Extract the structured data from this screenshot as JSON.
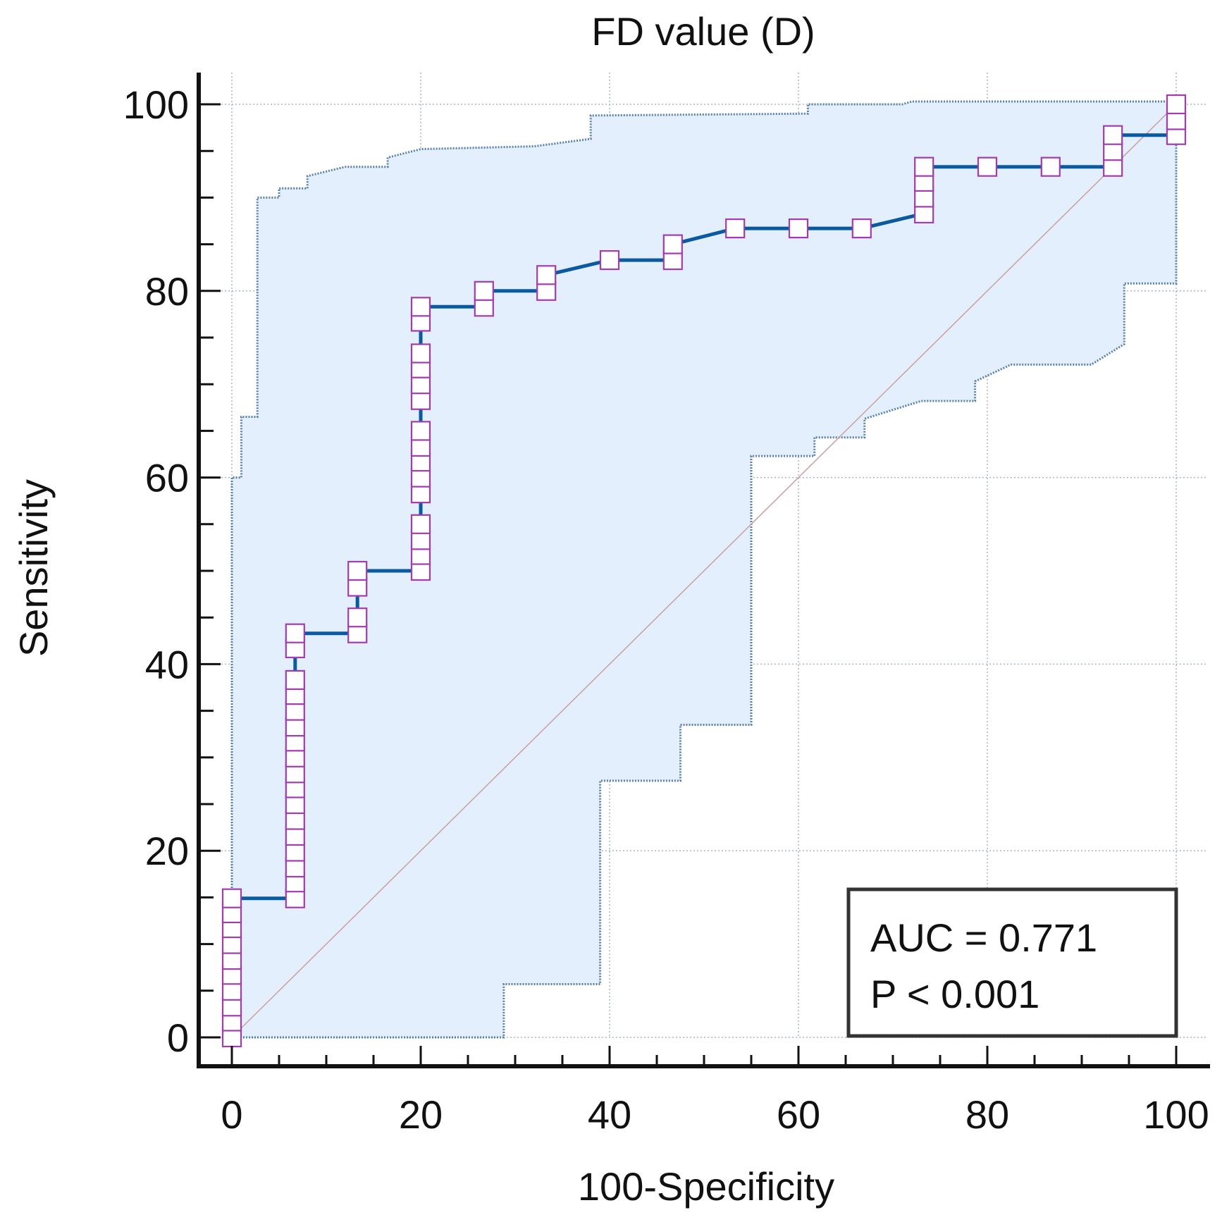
{
  "chart_data": {
    "type": "line",
    "title": "FD value (D)",
    "xlabel": "100-Specificity",
    "ylabel": "Sensitivity",
    "xlim": [
      0,
      100
    ],
    "ylim": [
      0,
      100
    ],
    "x_ticks": [
      "0",
      "20",
      "40",
      "60",
      "80",
      "100"
    ],
    "y_ticks": [
      "0",
      "20",
      "40",
      "60",
      "80",
      "100"
    ],
    "grid": true,
    "annotation": {
      "auc": "AUC = 0.771",
      "p": "P < 0.001"
    },
    "colors": {
      "roc_line": "#0b5aa0",
      "marker_edge": "#a33bb0",
      "ci_fill": "#e3effc",
      "ci_edge": "#5b80a8",
      "diagonal": "#c9a0a0",
      "grid": "#a9b6c4"
    },
    "roc_curve": {
      "name": "ROC curve",
      "points": [
        [
          0,
          0
        ],
        [
          0,
          14.9
        ],
        [
          6.7,
          14.9
        ],
        [
          6.7,
          43.3
        ],
        [
          13.3,
          43.3
        ],
        [
          13.3,
          50
        ],
        [
          20,
          50
        ],
        [
          20,
          78.3
        ],
        [
          26.7,
          78.3
        ],
        [
          26.7,
          80
        ],
        [
          33.3,
          80
        ],
        [
          33.3,
          81.7
        ],
        [
          40,
          83.3
        ],
        [
          46.7,
          83.3
        ],
        [
          46.7,
          85
        ],
        [
          53.3,
          86.7
        ],
        [
          60,
          86.7
        ],
        [
          66.7,
          86.7
        ],
        [
          73.3,
          88.3
        ],
        [
          73.3,
          93.3
        ],
        [
          80,
          93.3
        ],
        [
          86.7,
          93.3
        ],
        [
          93.3,
          93.3
        ],
        [
          93.3,
          96.7
        ],
        [
          100,
          96.7
        ],
        [
          100,
          100
        ]
      ]
    },
    "markers": [
      {
        "x": 0,
        "y": [
          0,
          1.7,
          3.3,
          5,
          6.7,
          8.3,
          10,
          11.7,
          13.3,
          14.9
        ]
      },
      {
        "x": 6.7,
        "y": [
          14.9,
          16.6,
          18.2,
          19.9,
          21.6,
          23.3,
          25,
          26.7,
          28.3,
          30,
          31.7,
          33.3,
          35,
          36.7,
          38.3,
          41.7,
          43.3
        ]
      },
      {
        "x": 13.3,
        "y": [
          43.3,
          45,
          48.3,
          50
        ]
      },
      {
        "x": 20,
        "y": [
          50,
          51.7,
          53.3,
          55,
          58.3,
          60,
          61.7,
          63.3,
          65,
          68.3,
          70,
          71.7,
          73.3,
          76.7,
          78.3
        ]
      },
      {
        "x": 26.7,
        "y": [
          78.3,
          80
        ]
      },
      {
        "x": 33.3,
        "y": [
          80,
          81.7
        ]
      },
      {
        "x": 40,
        "y": [
          83.3
        ]
      },
      {
        "x": 46.7,
        "y": [
          83.3,
          85
        ]
      },
      {
        "x": 53.3,
        "y": [
          86.7
        ]
      },
      {
        "x": 60,
        "y": [
          86.7
        ]
      },
      {
        "x": 66.7,
        "y": [
          86.7
        ]
      },
      {
        "x": 73.3,
        "y": [
          88.3,
          90,
          91.7,
          93.3
        ]
      },
      {
        "x": 80,
        "y": [
          93.3
        ]
      },
      {
        "x": 86.7,
        "y": [
          93.3
        ]
      },
      {
        "x": 93.3,
        "y": [
          93.3,
          95,
          96.7
        ]
      },
      {
        "x": 100,
        "y": [
          96.7,
          98.3,
          100
        ]
      }
    ],
    "ci_upper": [
      [
        0,
        0
      ],
      [
        0,
        60
      ],
      [
        1,
        60
      ],
      [
        1,
        66.5
      ],
      [
        2.7,
        66.5
      ],
      [
        2.7,
        90
      ],
      [
        5,
        90
      ],
      [
        5,
        91
      ],
      [
        8,
        91
      ],
      [
        8,
        92.3
      ],
      [
        12,
        93.3
      ],
      [
        16.5,
        93.3
      ],
      [
        16.5,
        94.3
      ],
      [
        20,
        95.2
      ],
      [
        32,
        95.5
      ],
      [
        38,
        96.3
      ],
      [
        38,
        98.8
      ],
      [
        61,
        99
      ],
      [
        61,
        100
      ],
      [
        71,
        100
      ],
      [
        72,
        100.3
      ],
      [
        100,
        100.3
      ]
    ],
    "ci_lower": [
      [
        0,
        0
      ],
      [
        28.8,
        0
      ],
      [
        28.8,
        5.7
      ],
      [
        39,
        5.7
      ],
      [
        39,
        27.5
      ],
      [
        47.5,
        27.5
      ],
      [
        47.5,
        33.5
      ],
      [
        55,
        33.5
      ],
      [
        55,
        62.3
      ],
      [
        61.7,
        62.3
      ],
      [
        61.7,
        64.3
      ],
      [
        67,
        64.3
      ],
      [
        67,
        66.3
      ],
      [
        73,
        68.2
      ],
      [
        78.7,
        68.2
      ],
      [
        78.7,
        70.3
      ],
      [
        82.5,
        72.1
      ],
      [
        91,
        72.1
      ],
      [
        94.5,
        74.3
      ],
      [
        94.5,
        80.8
      ],
      [
        100,
        80.8
      ],
      [
        100,
        100
      ]
    ]
  }
}
